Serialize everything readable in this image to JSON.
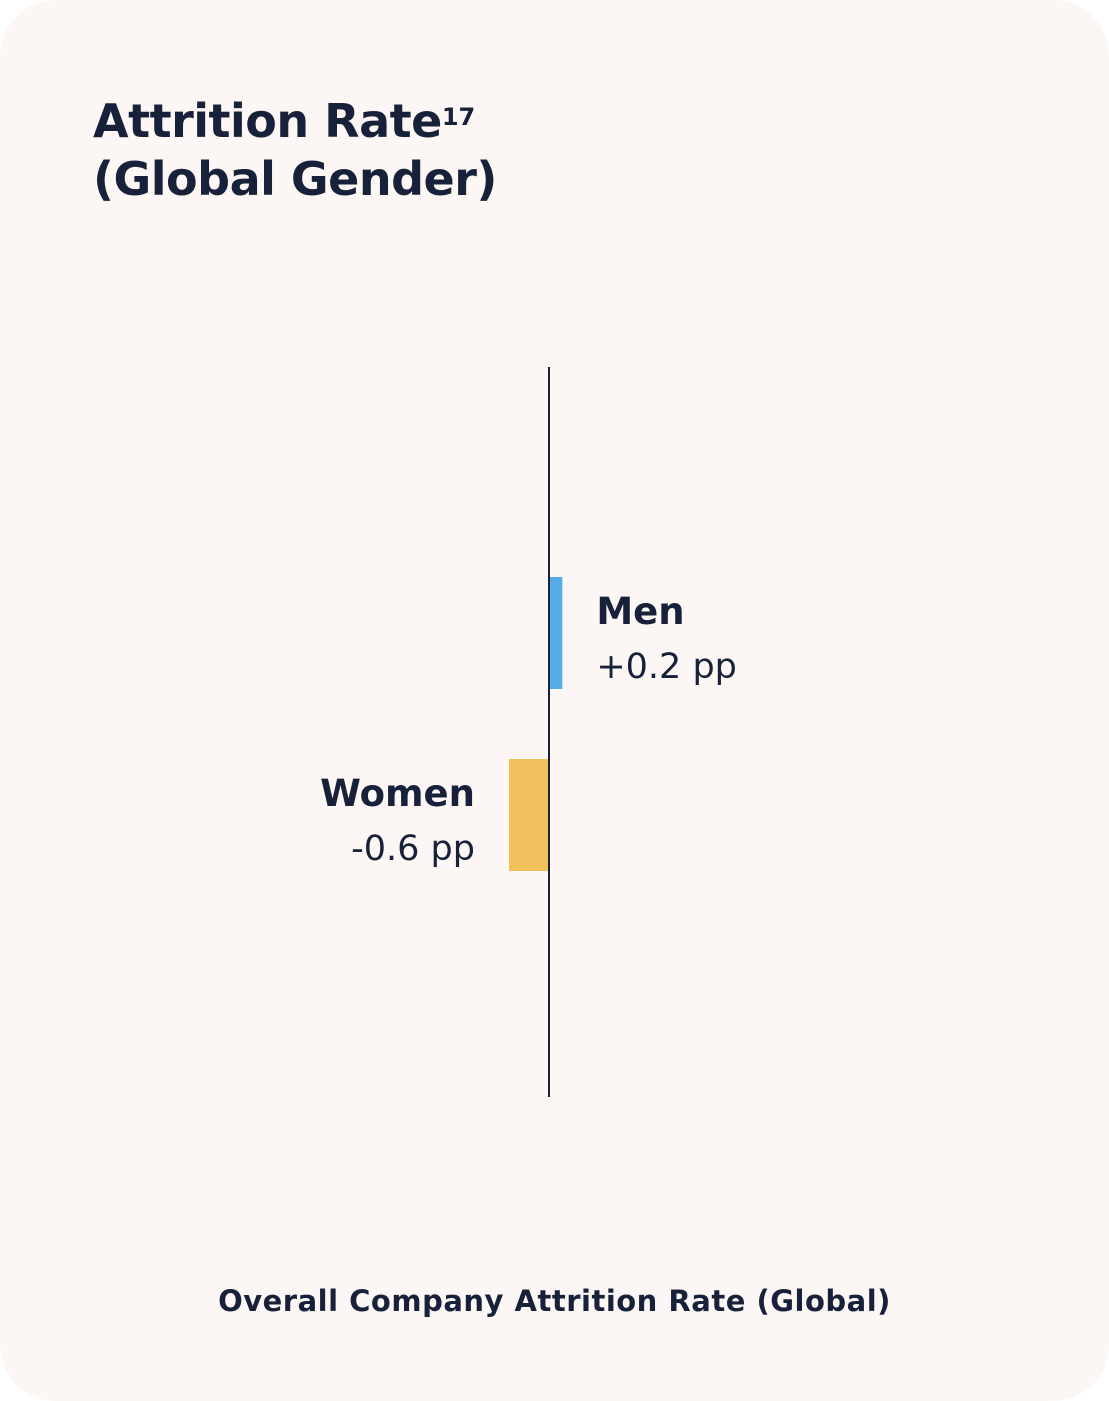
{
  "title": {
    "line1": "Attrition Rate",
    "superscript": "17",
    "line2": "(Global Gender)"
  },
  "footer_label": "Overall Company Attrition Rate (Global)",
  "colors": {
    "background": "#fcf7f4",
    "text": "#17213a",
    "men": "#52ade8",
    "women": "#f1bf5c",
    "axis": "#17213a"
  },
  "chart_data": {
    "type": "bar",
    "orientation": "horizontal",
    "categories": [
      "Men",
      "Women"
    ],
    "values": [
      0.2,
      -0.6
    ],
    "value_labels": [
      "+0.2 pp",
      "-0.6 pp"
    ],
    "unit": "pp",
    "baseline": 0,
    "xlim": [
      -3.9,
      3.9
    ],
    "grid": false,
    "legend": "none"
  }
}
